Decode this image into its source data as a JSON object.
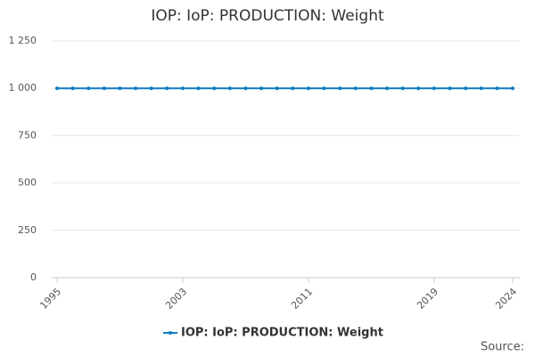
{
  "chart_data": {
    "type": "line",
    "title": "IOP: IoP: PRODUCTION: Weight",
    "x": [
      1995,
      1996,
      1997,
      1998,
      1999,
      2000,
      2001,
      2002,
      2003,
      2004,
      2005,
      2006,
      2007,
      2008,
      2009,
      2010,
      2011,
      2012,
      2013,
      2014,
      2015,
      2016,
      2017,
      2018,
      2019,
      2020,
      2021,
      2022,
      2023,
      2024
    ],
    "series": [
      {
        "name": "IOP: IoP: PRODUCTION: Weight",
        "color": "#0e7cc1",
        "values": [
          1000,
          1000,
          1000,
          1000,
          1000,
          1000,
          1000,
          1000,
          1000,
          1000,
          1000,
          1000,
          1000,
          1000,
          1000,
          1000,
          1000,
          1000,
          1000,
          1000,
          1000,
          1000,
          1000,
          1000,
          1000,
          1000,
          1000,
          1000,
          1000,
          1000
        ]
      }
    ],
    "xlim": [
      1995,
      2024
    ],
    "xticks": [
      1995,
      2003,
      2011,
      2019,
      2024
    ],
    "ylim": [
      0,
      1250
    ],
    "yticks": [
      0,
      250,
      500,
      750,
      {
        "value": 1000,
        "label": "1 000"
      },
      {
        "value": 1250,
        "label": "1 250"
      }
    ],
    "grid": true,
    "legend": "bottom",
    "source": "Source:"
  }
}
